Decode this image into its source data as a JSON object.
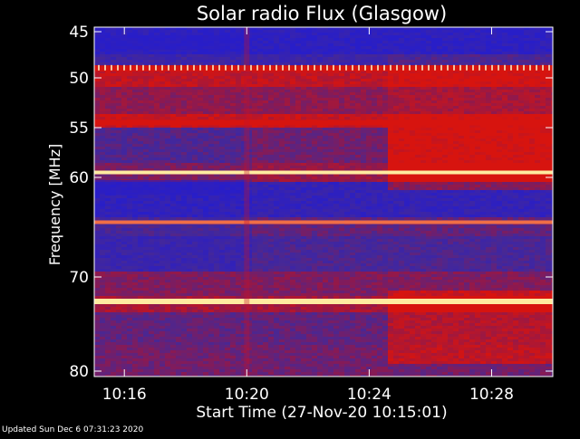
{
  "chart_data": {
    "type": "heatmap",
    "title": "Solar radio Flux (Glasgow)",
    "xlabel": "Start Time (27-Nov-20 10:15:01)",
    "ylabel": "Frequency [MHz]",
    "x_unit": "time",
    "xlim": [
      "10:15:01",
      "10:30:00"
    ],
    "ylim": [
      45,
      80
    ],
    "y_ticks": [
      45,
      50,
      55,
      60,
      70,
      80
    ],
    "x_ticks": [
      "10:16",
      "10:20",
      "10:24",
      "10:28"
    ],
    "colors": {
      "low": "#2a1ea8",
      "quiet": "#3a2a9a",
      "mid": "#8a1a50",
      "high": "#d21410",
      "peak": "#ffeaa0"
    },
    "strong_frequencies_mhz": [
      49.0,
      54.5,
      59.5,
      64.5,
      72.5
    ],
    "quiet_frequencies_mhz": [
      46.2,
      61.0
    ],
    "brightening_start": "10:24:30",
    "disturbance_time": "10:20"
  },
  "footer": {
    "updated": "Updated Sun Dec  6 07:31:23 2020"
  }
}
